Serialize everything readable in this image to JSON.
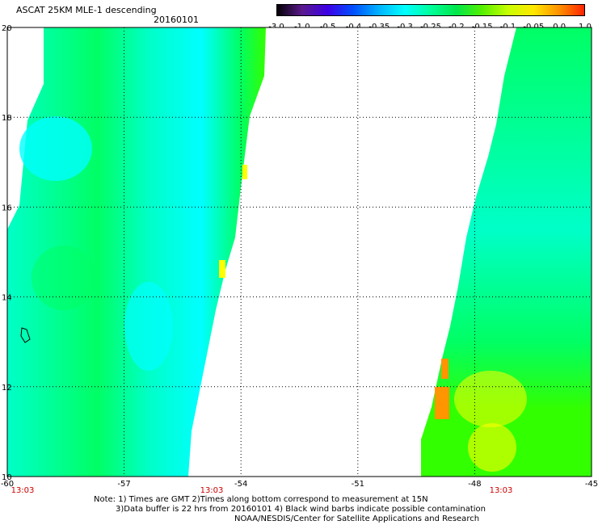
{
  "header": {
    "title": "ASCAT 25KM MLE-1 descending",
    "date": "20160101"
  },
  "colorbar": {
    "ticks": [
      "-3.0",
      "-1.0",
      "-0.5",
      "-0.4",
      "-0.35",
      "-0.3",
      "-0.25",
      "-0.2",
      "-0.15",
      "-0.1",
      "-0.05",
      "0.0",
      "1.0"
    ],
    "colors": [
      "#000000",
      "#5a1a8c",
      "#3c00e6",
      "#0050ff",
      "#00b4ff",
      "#00ffff",
      "#00ff9a",
      "#00e64b",
      "#55f000",
      "#c8ff00",
      "#ffe800",
      "#ff9000",
      "#ff2000"
    ]
  },
  "map": {
    "lon_labels": [
      "-60",
      "-57",
      "-54",
      "-51",
      "-48",
      "-45"
    ],
    "lat_labels": [
      "20",
      "18",
      "16",
      "14",
      "12",
      "10"
    ],
    "lon_range": [
      -60,
      -45
    ],
    "lat_range": [
      10,
      20
    ],
    "grid": true,
    "swath_time_labels": [
      "13:03",
      "13:03",
      "13:03"
    ],
    "time_label_color": "#cc0000",
    "swath_colors": {
      "cyan": "#00ffff",
      "aqua": "#00ffc8",
      "green": "#00ff64",
      "lime": "#32ff00",
      "yellow": "#ffff00",
      "orange": "#ff9600"
    }
  },
  "note": {
    "line1": "Note: 1) Times are GMT 2)Times along bottom correspond to measurement at 15N",
    "line2": "3)Data buffer is 22 hrs from 20160101 4) Black wind barbs indicate possible contamination",
    "line3": "NOAA/NESDIS/Center for Satellite Applications and Research"
  }
}
